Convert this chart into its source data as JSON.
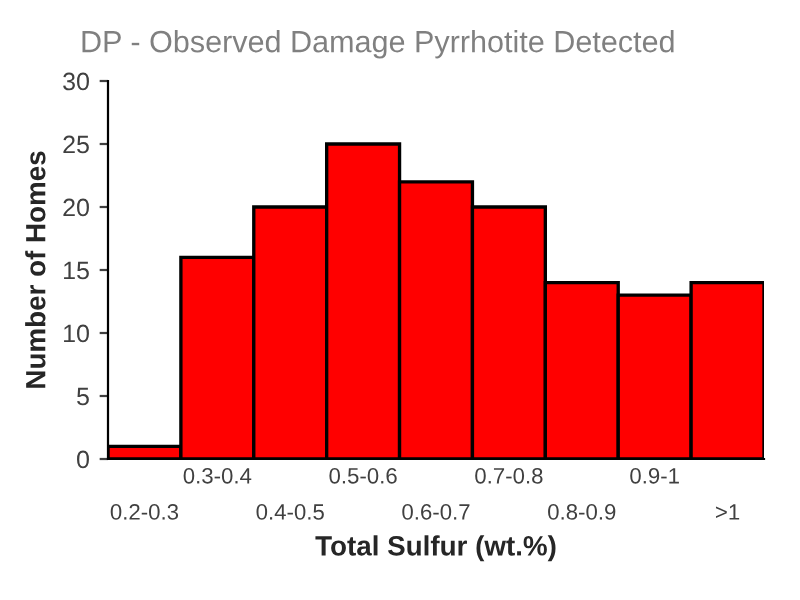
{
  "chart_data": {
    "type": "bar",
    "title": "DP - Observed Damage Pyrrhotite Detected",
    "xlabel": "Total Sulfur (wt.%)",
    "ylabel": "Number of Homes",
    "categories": [
      "0.2-0.3",
      "0.3-0.4",
      "0.4-0.5",
      "0.5-0.6",
      "0.6-0.7",
      "0.7-0.8",
      "0.8-0.9",
      "0.9-1",
      ">1"
    ],
    "values": [
      1,
      16,
      20,
      25,
      22,
      20,
      14,
      13,
      14
    ],
    "color": "#ff0000",
    "ylim": [
      0,
      30
    ],
    "yticks": [
      0,
      5,
      10,
      15,
      20,
      25,
      30
    ],
    "grid": false
  }
}
